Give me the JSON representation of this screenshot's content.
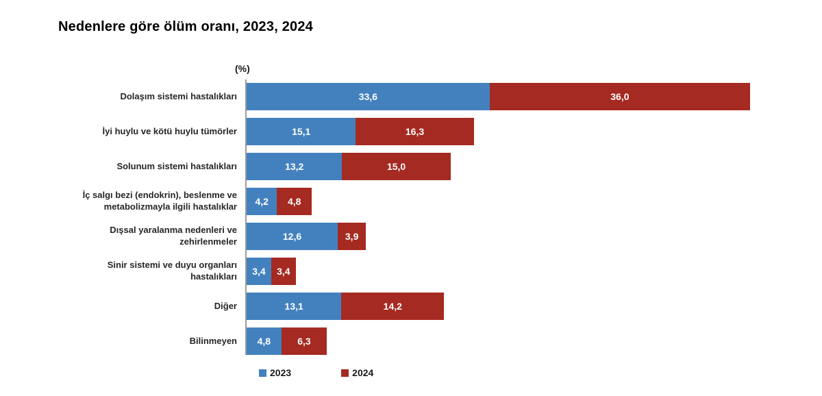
{
  "title": "Nedenlere göre ölüm oranı, 2023, 2024",
  "chart_data": {
    "type": "bar",
    "orientation": "horizontal",
    "stacked": true,
    "title": "Nedenlere göre ölüm oranı, 2023, 2024",
    "unit_label": "(%)",
    "legend_position": "bottom",
    "grid": false,
    "value_format": {
      "decimals": 1,
      "decimal_separator": ","
    },
    "categories": [
      "Dolaşım sistemi hastalıkları",
      "İyi huylu ve kötü huylu tümörler",
      "Solunum sistemi hastalıkları",
      "İç salgı bezi (endokrin), beslenme ve\nmetabolizmayla ilgili hastalıklar",
      "Dışsal yaralanma nedenleri ve\nzehirlenmeler",
      "Sinir sistemi ve duyu organları\nhastalıkları",
      "Diğer",
      "Bilinmeyen"
    ],
    "series": [
      {
        "name": "2023",
        "color": "#4381BE",
        "values": [
          33.6,
          15.1,
          13.2,
          4.2,
          12.6,
          3.4,
          13.1,
          4.8
        ]
      },
      {
        "name": "2024",
        "color": "#A52A21",
        "values": [
          36.0,
          16.3,
          15.0,
          4.8,
          3.9,
          3.4,
          14.2,
          6.3
        ]
      }
    ]
  }
}
